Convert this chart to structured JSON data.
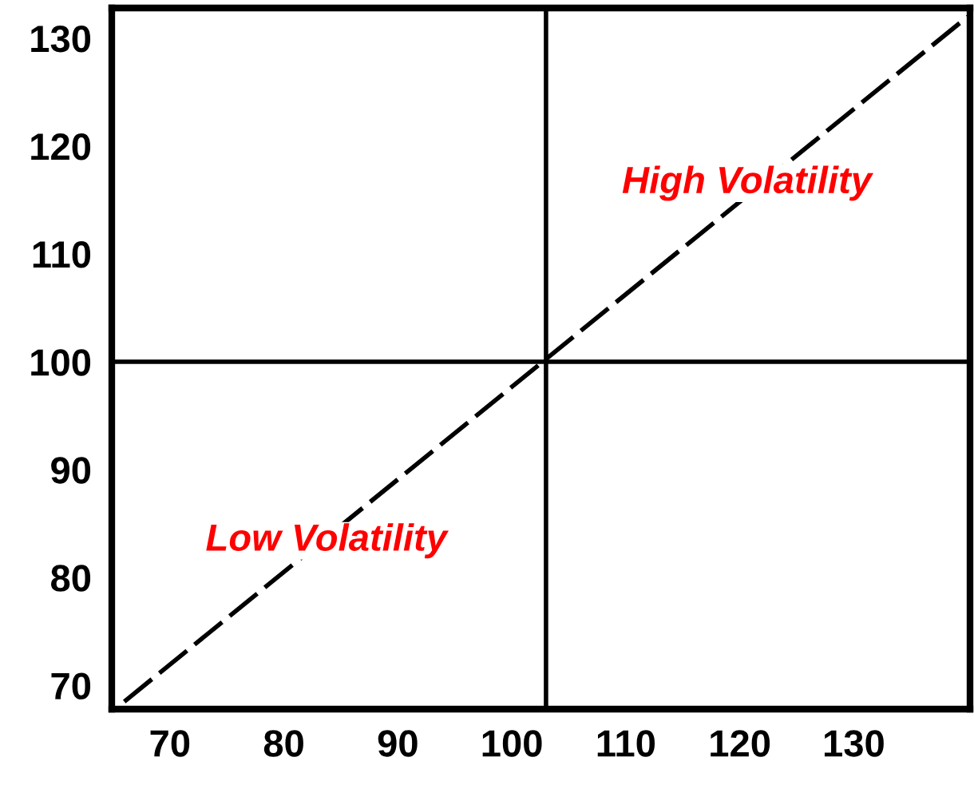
{
  "chart_data": {
    "type": "line",
    "x": [
      66,
      140
    ],
    "series": [
      {
        "color": "#000000",
        "values": [
          68.5,
          132
        ]
      }
    ],
    "line_style": "dashed",
    "marker": "none",
    "xlim": [
      64.9,
      140.2
    ],
    "ylim": [
      67.8,
      132.8
    ],
    "xticks": [
      70,
      80,
      90,
      100,
      110,
      120,
      130
    ],
    "yticks": [
      70,
      80,
      90,
      100,
      110,
      120,
      130
    ],
    "ref_lines": [
      {
        "axis": "x",
        "value": 103,
        "color": "#000000"
      },
      {
        "axis": "y",
        "value": 100,
        "color": "#000000"
      }
    ],
    "annotations": [
      "High Volatility",
      "Low Volatility"
    ],
    "grid": false,
    "legend": false
  }
}
